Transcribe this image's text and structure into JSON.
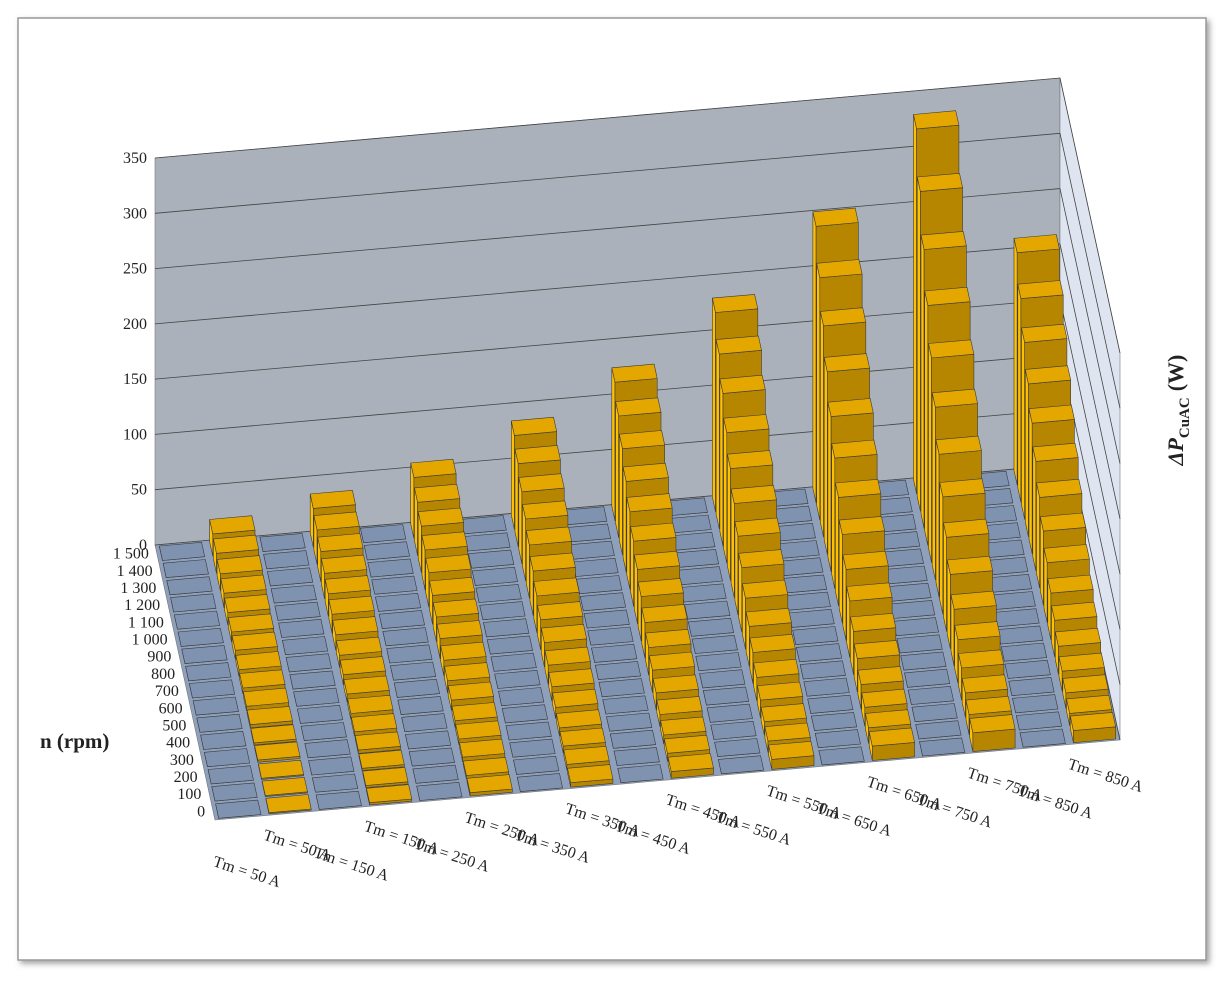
{
  "chart_data": {
    "type": "bar3d",
    "y_title": "n (rpm)",
    "z_title": {
      "main": "ΔP",
      "sub": "CuAC",
      "unit": "(W)"
    },
    "categories": [
      "Tm = 50 A",
      "Tm = 50 A",
      "Tm = 150 A",
      "Tm = 150 A",
      "Tm = 250 A",
      "Tm = 250 A",
      "Tm = 350 A",
      "Tm = 350 A",
      "Tm = 450 A",
      "Tm = 450 A",
      "Tm = 550 A",
      "Tm = 550 A",
      "Tm = 650 A",
      "Tm = 650 A",
      "Tm = 750 A",
      "Tm = 750 A",
      "Tm = 850 A",
      "Tm = 850 A"
    ],
    "depth_categories": [
      "0",
      "100",
      "200",
      "300",
      "400",
      "500",
      "600",
      "700",
      "800",
      "900",
      "1 000",
      "1 100",
      "1 200",
      "1 300",
      "1 400",
      "1 500"
    ],
    "colors": [
      "#7f93b0",
      "#e3a700",
      "#7f93b0",
      "#e3a700",
      "#7f93b0",
      "#e3a700",
      "#7f93b0",
      "#e3a700",
      "#7f93b0",
      "#e3a700",
      "#7f93b0",
      "#e3a700",
      "#7f93b0",
      "#e3a700",
      "#7f93b0",
      "#e3a700",
      "#7f93b0",
      "#e3a700"
    ],
    "values": [
      [
        0,
        0,
        0,
        0,
        0,
        0,
        0,
        0,
        0,
        0,
        0,
        0,
        0,
        0,
        0,
        0
      ],
      [
        1,
        1,
        1,
        2,
        2,
        3,
        4,
        5,
        6,
        8,
        9,
        11,
        13,
        15,
        18,
        20
      ],
      [
        0,
        0,
        0,
        0,
        0,
        0,
        0,
        0,
        0,
        0,
        0,
        0,
        0,
        0,
        0,
        0
      ],
      [
        2,
        2,
        2,
        3,
        4,
        5,
        7,
        9,
        11,
        14,
        17,
        20,
        23,
        27,
        31,
        35
      ],
      [
        0,
        0,
        0,
        0,
        0,
        0,
        0,
        0,
        0,
        0,
        0,
        0,
        0,
        0,
        0,
        0
      ],
      [
        3,
        3,
        4,
        5,
        6,
        9,
        11,
        14,
        18,
        22,
        26,
        31,
        36,
        42,
        48,
        55
      ],
      [
        0,
        0,
        0,
        0,
        0,
        0,
        0,
        0,
        0,
        0,
        0,
        0,
        0,
        0,
        0,
        0
      ],
      [
        4,
        5,
        6,
        7,
        10,
        13,
        17,
        22,
        27,
        33,
        40,
        48,
        56,
        65,
        75,
        85
      ],
      [
        0,
        0,
        0,
        0,
        0,
        0,
        0,
        0,
        0,
        0,
        0,
        0,
        0,
        0,
        0,
        0
      ],
      [
        6,
        7,
        8,
        11,
        15,
        20,
        25,
        32,
        40,
        49,
        59,
        70,
        82,
        96,
        110,
        125
      ],
      [
        0,
        0,
        0,
        0,
        0,
        0,
        0,
        0,
        0,
        0,
        0,
        0,
        0,
        0,
        0,
        0
      ],
      [
        9,
        10,
        12,
        16,
        21,
        28,
        36,
        46,
        58,
        71,
        85,
        101,
        118,
        138,
        158,
        180
      ],
      [
        0,
        0,
        0,
        0,
        0,
        0,
        0,
        0,
        0,
        0,
        0,
        0,
        0,
        0,
        0,
        0
      ],
      [
        13,
        14,
        17,
        22,
        30,
        39,
        51,
        64,
        80,
        98,
        118,
        140,
        165,
        191,
        219,
        250
      ],
      [
        0,
        0,
        0,
        0,
        0,
        0,
        0,
        0,
        0,
        0,
        0,
        0,
        0,
        0,
        0,
        0
      ],
      [
        17,
        18,
        22,
        29,
        39,
        51,
        67,
        85,
        106,
        129,
        156,
        185,
        217,
        252,
        289,
        330
      ],
      [
        0,
        0,
        0,
        0,
        0,
        0,
        0,
        0,
        0,
        0,
        0,
        0,
        0,
        0,
        0,
        0
      ],
      [
        11,
        11,
        14,
        18,
        25,
        33,
        42,
        54,
        67,
        82,
        99,
        118,
        138,
        160,
        184,
        210
      ]
    ],
    "zlim": [
      0,
      350
    ],
    "zticks": [
      0,
      50,
      100,
      150,
      200,
      250,
      300,
      350
    ],
    "grid": true
  }
}
